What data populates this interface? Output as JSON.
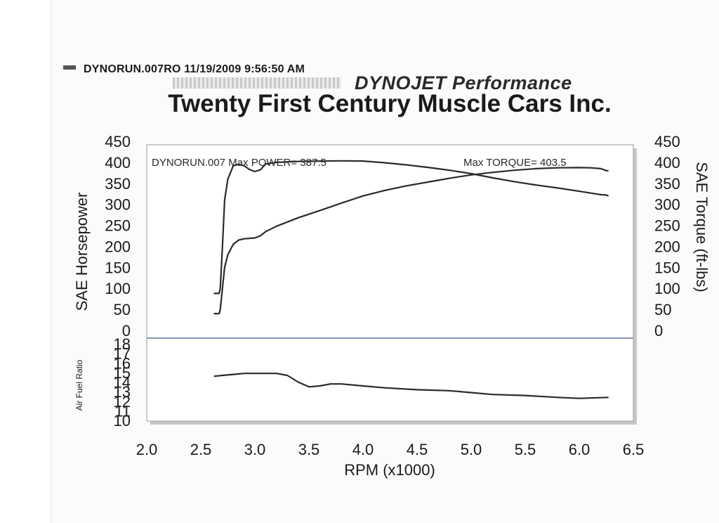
{
  "header": {
    "run_line": "DYNORUN.007RO  11/19/2009 9:56:50 AM",
    "brand": "DYNOJET Performance",
    "title": "Twenty First Century Muscle Cars Inc.",
    "run_swatch_color": "#555555"
  },
  "chart_data": [
    {
      "type": "line",
      "panel": "top",
      "xlabel": "RPM (x1000)",
      "ylabel": "SAE Horsepower",
      "ylabel_right": "SAE Torque (ft-lbs)",
      "xlim": [
        2.0,
        6.5
      ],
      "ylim": [
        0,
        450
      ],
      "x_ticks": [
        "2.0",
        "2.5",
        "3.0",
        "3.5",
        "4.0",
        "4.5",
        "5.0",
        "5.5",
        "6.0",
        "6.5"
      ],
      "y_ticks": [
        "0",
        "50",
        "100",
        "150",
        "200",
        "250",
        "300",
        "350",
        "400",
        "450"
      ],
      "y_ticks_right": [
        "0",
        "50",
        "100",
        "150",
        "200",
        "250",
        "300",
        "350",
        "400",
        "450"
      ],
      "annotations": {
        "max_power": "DYNORUN.007  Max POWER= 387.5",
        "max_torque": "Max TORQUE= 403.5"
      },
      "grid": false,
      "series": [
        {
          "role": "torque",
          "color": "#2a2a2a",
          "x": [
            2.62,
            2.67,
            2.68,
            2.7,
            2.72,
            2.75,
            2.8,
            2.85,
            2.9,
            2.95,
            3.0,
            3.05,
            3.1,
            3.2,
            3.4,
            3.6,
            3.8,
            4.0,
            4.2,
            4.4,
            4.6,
            4.8,
            5.0,
            5.2,
            5.4,
            5.6,
            5.8,
            6.0,
            6.2,
            6.25,
            6.27
          ],
          "y": [
            88,
            88,
            100,
            200,
            310,
            360,
            392,
            395,
            392,
            383,
            378,
            382,
            396,
            400,
            402,
            403,
            403.5,
            403,
            399,
            394,
            388,
            381,
            373,
            363,
            354,
            346,
            339,
            331,
            323,
            322,
            320
          ]
        },
        {
          "role": "power",
          "color": "#2a2a2a",
          "x": [
            2.62,
            2.67,
            2.68,
            2.7,
            2.72,
            2.75,
            2.8,
            2.85,
            2.9,
            3.0,
            3.05,
            3.1,
            3.2,
            3.4,
            3.6,
            3.8,
            4.0,
            4.2,
            4.4,
            4.6,
            4.8,
            5.0,
            5.2,
            5.4,
            5.6,
            5.8,
            6.0,
            6.1,
            6.2,
            6.25,
            6.27
          ],
          "y": [
            40,
            40,
            50,
            100,
            150,
            180,
            205,
            215,
            218,
            220,
            225,
            235,
            248,
            268,
            285,
            303,
            320,
            333,
            344,
            353,
            362,
            370,
            376,
            381,
            385,
            387,
            387.5,
            387,
            385,
            380,
            380
          ]
        }
      ]
    },
    {
      "type": "line",
      "panel": "bottom",
      "ylabel": "Air Fuel Ratio",
      "xlim": [
        2.0,
        6.5
      ],
      "ylim": [
        10,
        18
      ],
      "y_ticks": [
        "10",
        "11",
        "12",
        "13",
        "14",
        "15",
        "16",
        "17",
        "18"
      ],
      "grid": false,
      "series": [
        {
          "role": "afr",
          "color": "#2a2a2a",
          "x": [
            2.62,
            2.7,
            2.8,
            2.9,
            3.0,
            3.1,
            3.2,
            3.3,
            3.4,
            3.5,
            3.6,
            3.7,
            3.8,
            4.0,
            4.2,
            4.5,
            4.8,
            5.0,
            5.2,
            5.5,
            5.8,
            6.0,
            6.27
          ],
          "y": [
            14.6,
            14.7,
            14.8,
            14.9,
            14.9,
            14.9,
            14.9,
            14.7,
            14.0,
            13.5,
            13.6,
            13.8,
            13.8,
            13.6,
            13.4,
            13.2,
            13.1,
            12.9,
            12.7,
            12.6,
            12.4,
            12.3,
            12.4
          ]
        }
      ]
    }
  ]
}
